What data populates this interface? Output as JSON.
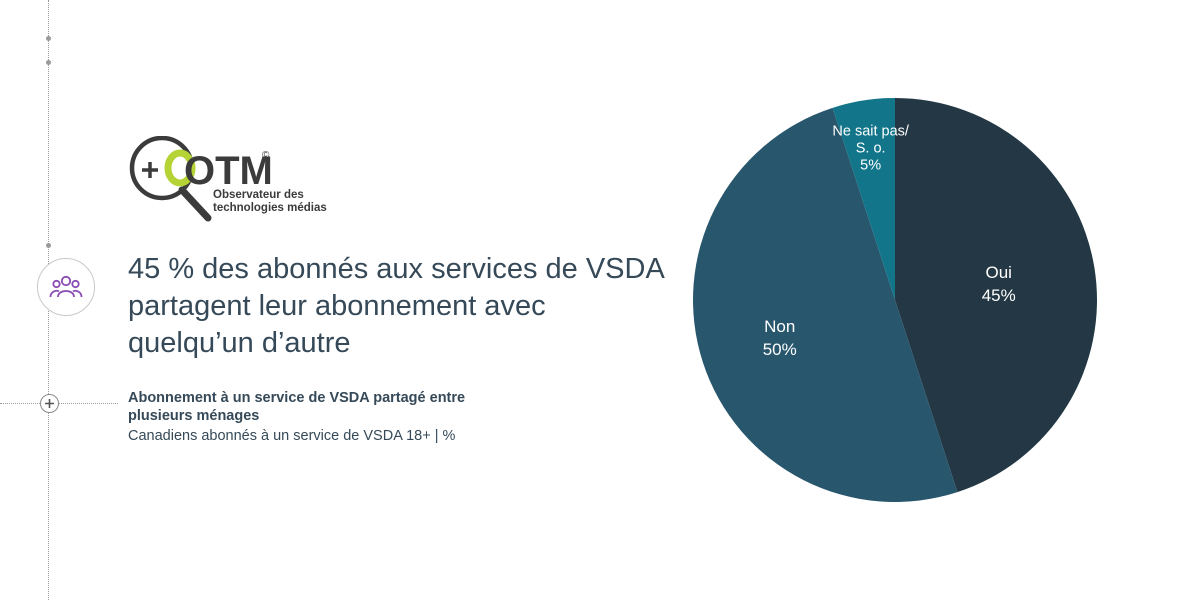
{
  "logo": {
    "mark": "OTM",
    "copyright": "©",
    "subtitle_line1": "Observateur des",
    "subtitle_line2": "technologies médias"
  },
  "headline": "45 % des abonnés aux services de VSDA partagent leur abonnement avec quelqu’un d’autre",
  "icons": {
    "people": "people-icon",
    "plus": "plus-icon",
    "search": "magnifier-logo-icon"
  },
  "colors": {
    "oui": "#233844",
    "non": "#28576d",
    "nsp": "#12758a",
    "text": "#354958",
    "accent": "#b5d334",
    "people_icon": "#8a4bb3"
  },
  "chart_data": {
    "type": "pie",
    "title": "Abonnement à un service de VSDA partagé entre plusieurs ménages",
    "subtitle": "Canadiens abonnés à un service de VSDA 18+ | %",
    "slices": [
      {
        "key": "oui",
        "label": "Oui",
        "value": 45,
        "value_label": "45%"
      },
      {
        "key": "non",
        "label": "Non",
        "value": 50,
        "value_label": "50%"
      },
      {
        "key": "nsp",
        "label": "Ne sait pas/ S. o.",
        "label_lines": [
          "Ne sait pas/",
          "S. o."
        ],
        "value": 5,
        "value_label": "5%"
      }
    ],
    "legend": "none"
  }
}
